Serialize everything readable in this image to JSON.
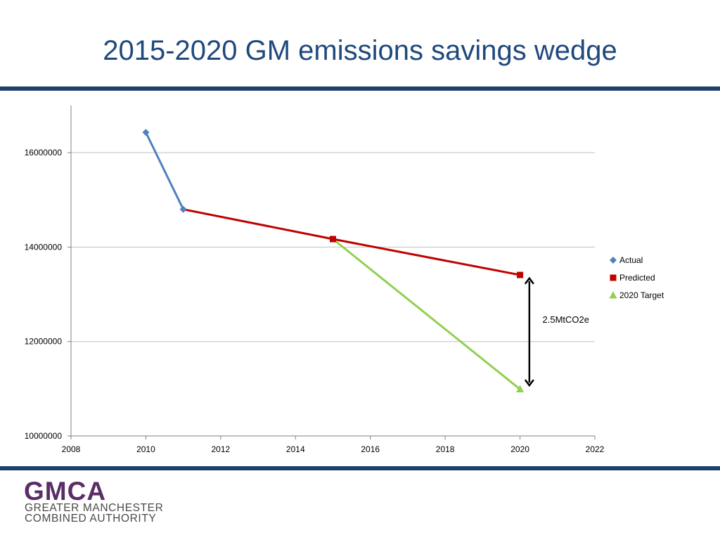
{
  "slide": {
    "title": "2015-2020 GM emissions savings wedge",
    "logo": {
      "mark": "GMCA",
      "line1": "GREATER MANCHESTER",
      "line2": "COMBINED AUTHORITY"
    }
  },
  "colors": {
    "title": "#1f497d",
    "rule": "#1f3f6e",
    "actual": "#4f81bd",
    "predicted": "#c00000",
    "target": "#92d050",
    "grid": "#bfbfbf",
    "axis": "#808080",
    "logo_mark": "#5b2d66"
  },
  "chart_data": {
    "type": "line",
    "title": "",
    "xlabel": "",
    "ylabel": "",
    "xlim": [
      2008,
      2022
    ],
    "ylim": [
      10000000,
      17000000
    ],
    "x_ticks": [
      2008,
      2010,
      2012,
      2014,
      2016,
      2018,
      2020,
      2022
    ],
    "y_ticks": [
      10000000,
      12000000,
      14000000,
      16000000
    ],
    "x_tick_labels": [
      "2008",
      "2010",
      "2012",
      "2014",
      "2016",
      "2018",
      "2020",
      "2022"
    ],
    "y_tick_labels": [
      "10000000",
      "12000000",
      "14000000",
      "16000000"
    ],
    "grid": "horizontal",
    "legend_position": "right",
    "series": [
      {
        "name": "Actual",
        "marker": "diamond",
        "points": [
          [
            2010,
            16430000
          ],
          [
            2011,
            14800000
          ]
        ]
      },
      {
        "name": "Predicted",
        "marker": "square",
        "points": [
          [
            2011,
            14800000
          ],
          [
            2015,
            14170000
          ],
          [
            2020,
            13410000
          ]
        ]
      },
      {
        "name": "2020 Target",
        "marker": "triangle",
        "points": [
          [
            2015,
            14170000
          ],
          [
            2020,
            10990000
          ]
        ]
      }
    ],
    "annotation": {
      "text": "2.5MtCO2e",
      "arrow_x": 2020.25,
      "arrow_from": 13340000,
      "arrow_to": 11070000,
      "label_x": 2020.6,
      "label_y": 12400000
    }
  }
}
